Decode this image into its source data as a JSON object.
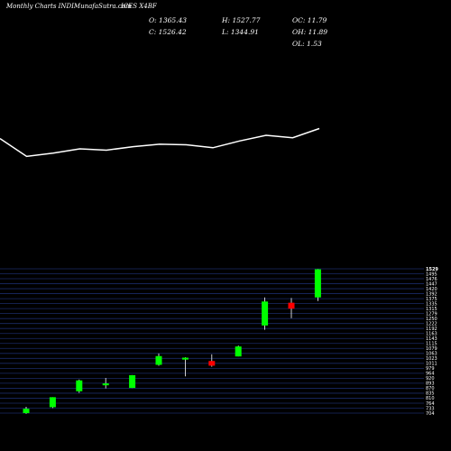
{
  "header": {
    "source": "Monthly Charts INDIMunafaSutra.com",
    "symbol": "ICES X4BF"
  },
  "ohlc": {
    "o": "O: 1365.43",
    "c": "C: 1526.42",
    "h": "H: 1527.77",
    "l": "L: 1344.91",
    "oc": "OC: 11.79",
    "oh": "OH: 11.89",
    "ol": "OL: 1.53"
  },
  "colors": {
    "up": "#00ff00",
    "down": "#ff0000",
    "line": "#ffffff",
    "grid": "#1a2a66",
    "background": "#000000"
  },
  "chart_data": [
    {
      "type": "line",
      "x": [
        1,
        2,
        3,
        4,
        5,
        6,
        7,
        8,
        9,
        10,
        11,
        12,
        13
      ],
      "y": [
        0.12,
        0.78,
        0.66,
        0.5,
        0.55,
        0.42,
        0.33,
        0.35,
        0.46,
        0.21,
        0.0,
        0.09,
        -0.25
      ],
      "title": "",
      "xlabel": "",
      "ylabel": ""
    },
    {
      "type": "candlestick",
      "ylim": [
        704,
        1529
      ],
      "tick_labels": [
        "1529",
        "1495",
        "1476",
        "1447",
        "1420",
        "1392",
        "1375",
        "1335",
        "1315",
        "1279",
        "1250",
        "1222",
        "1192",
        "1163",
        "1143",
        "1115",
        "1079",
        "1063",
        "1023",
        "1011",
        "979",
        "964",
        "920",
        "893",
        "870",
        "835",
        "810",
        "764",
        "733",
        "704"
      ],
      "candles": [
        {
          "o": 704,
          "h": 740,
          "l": 700,
          "c": 729
        },
        {
          "o": 738,
          "h": 795,
          "l": 733,
          "c": 795
        },
        {
          "o": 829,
          "h": 896,
          "l": 820,
          "c": 891
        },
        {
          "o": 863,
          "h": 905,
          "l": 845,
          "c": 874
        },
        {
          "o": 848,
          "h": 921,
          "l": 848,
          "c": 921
        },
        {
          "o": 980,
          "h": 1045,
          "l": 975,
          "c": 1030
        },
        {
          "o": 1010,
          "h": 1023,
          "l": 914,
          "c": 1021
        },
        {
          "o": 1002,
          "h": 1040,
          "l": 969,
          "c": 975
        },
        {
          "o": 1028,
          "h": 1090,
          "l": 1028,
          "c": 1085
        },
        {
          "o": 1205,
          "h": 1365,
          "l": 1180,
          "c": 1342
        },
        {
          "o": 1335,
          "h": 1362,
          "l": 1247,
          "c": 1301
        },
        {
          "o": 1365.43,
          "h": 1527.77,
          "l": 1344.91,
          "c": 1526.42
        }
      ]
    }
  ]
}
